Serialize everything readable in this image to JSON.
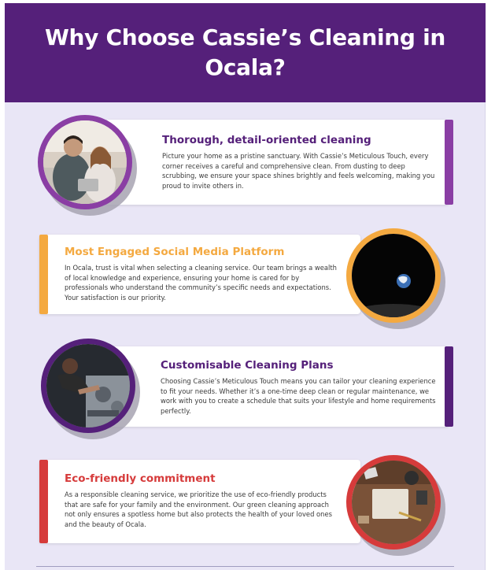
{
  "header": {
    "title": "Why Choose Cassie’s Cleaning in Ocala?"
  },
  "colors": {
    "purple": "#55207a",
    "violet": "#8a3ea4",
    "orange": "#f4a940",
    "red": "#d63b3b",
    "background": "#e9e6f6"
  },
  "sections": [
    {
      "title": "Thorough, detail-oriented cleaning",
      "body": "Picture your home as a pristine sanctuary. With Cassie’s Meticulous Touch, every corner receives a careful and comprehensive clean. From dusting to deep scrubbing, we ensure your space shines brightly and feels welcoming, making you proud to invite others in.",
      "image": "couple-on-couch-photo"
    },
    {
      "title": "Most Engaged Social Media Platform",
      "body": "In Ocala, trust is vital when selecting a cleaning service. Our team brings a wealth of local knowledge and experience, ensuring your home is cared for by professionals who understand the community’s specific needs and expectations. Your satisfaction is our priority.",
      "image": "earth-from-space-photo"
    },
    {
      "title": "Customisable Cleaning Plans",
      "body": "Choosing Cassie’s Meticulous Touch means you can tailor your cleaning experience to fit your needs. Whether it’s a one-time deep clean or regular maintenance, we work with you to create a schedule that suits your lifestyle and home requirements perfectly.",
      "image": "mechanic-engine-photo"
    },
    {
      "title": "Eco-friendly commitment",
      "body": "As a responsible cleaning service, we prioritize the use of eco-friendly products that are safe for your family and the environment. Our green cleaning approach not only ensures a spotless home but also protects the health of your loved ones and the beauty of Ocala.",
      "image": "desk-flatlay-photo"
    }
  ]
}
